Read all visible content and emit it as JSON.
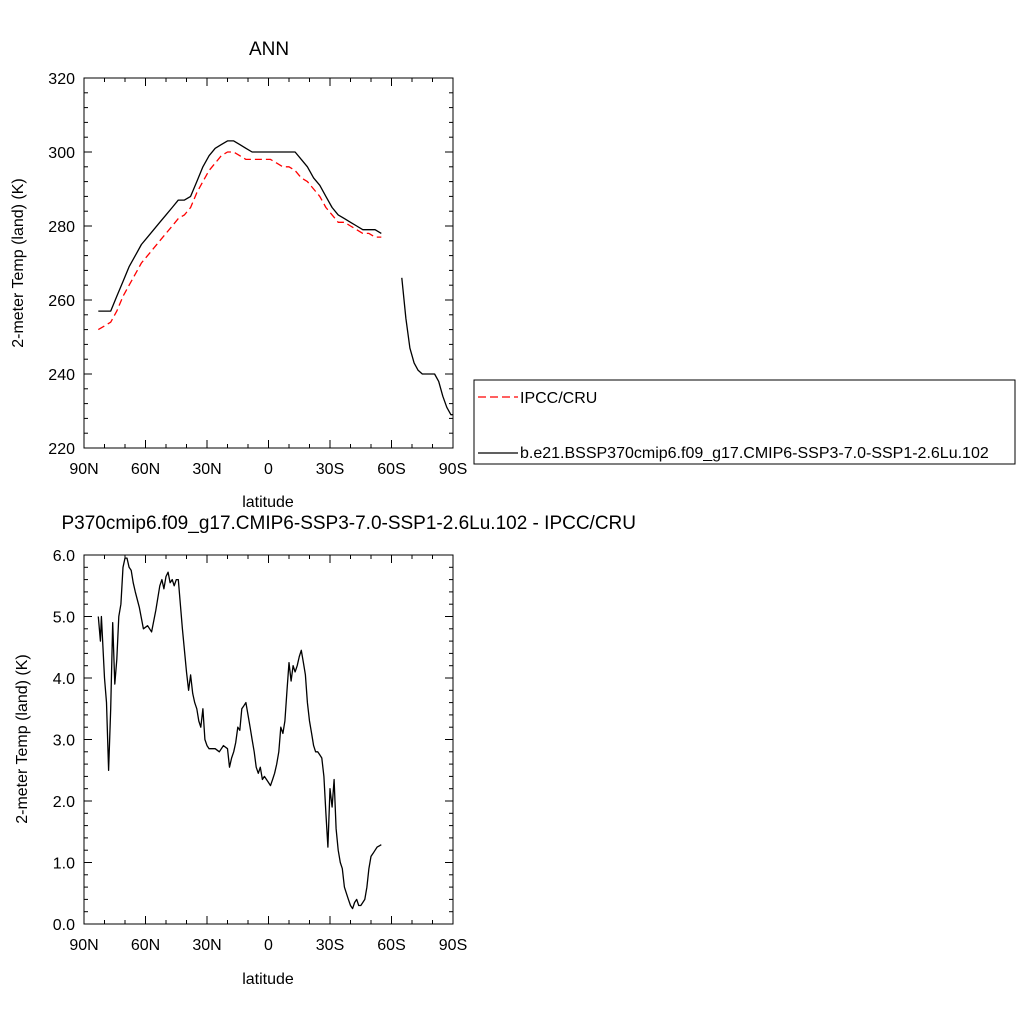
{
  "chart_data": [
    {
      "type": "line",
      "title": "ANN",
      "xlabel": "latitude",
      "ylabel": "2-meter Temp (land) (K)",
      "xlim": [
        90,
        -90
      ],
      "ylim": [
        220,
        320
      ],
      "xticks": [
        90,
        60,
        30,
        0,
        -30,
        -60,
        -90
      ],
      "xtick_labels": [
        "90N",
        "60N",
        "30N",
        "0",
        "30S",
        "60S",
        "90S"
      ],
      "yticks": [
        220,
        240,
        260,
        280,
        300,
        320
      ],
      "ytick_labels": [
        "220",
        "240",
        "260",
        "280",
        "300",
        "320"
      ],
      "legend_position": "right",
      "series": [
        {
          "name": "IPCC/CRU",
          "color": "#ff0000",
          "dash": "dashed",
          "x": [
            83,
            80,
            77,
            74,
            71,
            68,
            65,
            62,
            59,
            56,
            53,
            50,
            47,
            44,
            41,
            38,
            35,
            32,
            29,
            26,
            23,
            20,
            17,
            14,
            11,
            8,
            5,
            2,
            -1,
            -4,
            -7,
            -10,
            -13,
            -16,
            -19,
            -22,
            -25,
            -28,
            -31,
            -34,
            -37,
            -40,
            -43,
            -46,
            -49,
            -52,
            -55
          ],
          "y": [
            252,
            253,
            254,
            257,
            261,
            264,
            267,
            270,
            272,
            274,
            276,
            278,
            280,
            282,
            283,
            285,
            289,
            292,
            295,
            297,
            299,
            300,
            300,
            299,
            298,
            298,
            298,
            298,
            298,
            297,
            296,
            296,
            295,
            293,
            292,
            290,
            288,
            285,
            283,
            281,
            281,
            280,
            279,
            278,
            278,
            277,
            277
          ]
        },
        {
          "name": "b.e21.BSSP370cmip6.f09_g17.CMIP6-SSP3-7.0-SSP1-2.6Lu.102",
          "color": "#000000",
          "dash": "solid",
          "x": [
            83,
            80,
            77,
            74,
            71,
            68,
            65,
            62,
            59,
            56,
            53,
            50,
            47,
            44,
            41,
            38,
            35,
            32,
            29,
            26,
            23,
            20,
            17,
            14,
            11,
            8,
            5,
            2,
            -1,
            -4,
            -7,
            -10,
            -13,
            -16,
            -19,
            -22,
            -25,
            -28,
            -31,
            -34,
            -37,
            -40,
            -43,
            -46,
            -49,
            -52,
            -55,
            null,
            -65,
            -67,
            -69,
            -71,
            -73,
            -75,
            -77,
            -79,
            -81,
            -83,
            -85,
            -87,
            -89,
            -90
          ],
          "y": [
            257,
            257,
            257,
            261,
            265,
            269,
            272,
            275,
            277,
            279,
            281,
            283,
            285,
            287,
            287,
            288,
            292,
            296,
            299,
            301,
            302,
            303,
            303,
            302,
            301,
            300,
            300,
            300,
            300,
            300,
            300,
            300,
            300,
            298,
            296,
            293,
            291,
            288,
            285,
            283,
            282,
            281,
            280,
            279,
            279,
            279,
            278,
            null,
            266,
            255,
            247,
            243,
            241,
            240,
            240,
            240,
            240,
            238,
            234,
            231,
            229,
            229
          ]
        }
      ]
    },
    {
      "type": "line",
      "title": "P370cmip6.f09_g17.CMIP6-SSP3-7.0-SSP1-2.6Lu.102 - IPCC/CRU",
      "xlabel": "latitude",
      "ylabel": "2-meter Temp (land) (K)",
      "xlim": [
        90,
        -90
      ],
      "ylim": [
        0,
        6
      ],
      "xticks": [
        90,
        60,
        30,
        0,
        -30,
        -60,
        -90
      ],
      "xtick_labels": [
        "90N",
        "60N",
        "30N",
        "0",
        "30S",
        "60S",
        "90S"
      ],
      "yticks": [
        0,
        1,
        2,
        3,
        4,
        5,
        6
      ],
      "ytick_labels": [
        "0.0",
        "1.0",
        "2.0",
        "3.0",
        "4.0",
        "5.0",
        "6.0"
      ],
      "series": [
        {
          "color": "#000000",
          "dash": "solid",
          "x": [
            83,
            82,
            81.5,
            80,
            79,
            78,
            77,
            76,
            75,
            74,
            73,
            72,
            71,
            70,
            69,
            68,
            67,
            66,
            65,
            63,
            61,
            59,
            58,
            57,
            55,
            53,
            52,
            51,
            50,
            49,
            48,
            47,
            46,
            45,
            44,
            42,
            40,
            39,
            38,
            37,
            36,
            35,
            34,
            33,
            32,
            31,
            30,
            29,
            28,
            26,
            24,
            22,
            20,
            19,
            18,
            17,
            16,
            15,
            14,
            13,
            12,
            11,
            10,
            9,
            8,
            7,
            6,
            5,
            4,
            3,
            2,
            1,
            0,
            -1,
            -2,
            -3,
            -4,
            -5,
            -6,
            -7,
            -8,
            -9,
            -10,
            -11,
            -12,
            -13,
            -14,
            -15,
            -16,
            -17,
            -18,
            -19,
            -20,
            -21,
            -22,
            -23,
            -24,
            -25,
            -26,
            -27,
            -28,
            -29,
            -30,
            -31,
            -32,
            -33,
            -34,
            -35,
            -36,
            -37,
            -38,
            -39,
            -40,
            -41,
            -42,
            -43,
            -44,
            -45,
            -46,
            -47,
            -48,
            -49,
            -50,
            -51,
            -52,
            -53,
            -54,
            -55
          ],
          "y": [
            5.0,
            4.6,
            5.0,
            4.0,
            3.6,
            2.5,
            3.5,
            4.9,
            3.9,
            4.3,
            5.0,
            5.2,
            5.8,
            5.95,
            5.95,
            5.8,
            5.75,
            5.55,
            5.4,
            5.15,
            4.8,
            4.85,
            4.8,
            4.75,
            5.1,
            5.5,
            5.6,
            5.45,
            5.65,
            5.72,
            5.55,
            5.6,
            5.5,
            5.6,
            5.6,
            4.8,
            4.1,
            3.8,
            4.05,
            3.75,
            3.6,
            3.5,
            3.3,
            3.2,
            3.5,
            3.0,
            2.9,
            2.85,
            2.85,
            2.85,
            2.8,
            2.9,
            2.85,
            2.55,
            2.7,
            2.8,
            2.95,
            3.2,
            3.15,
            3.5,
            3.55,
            3.6,
            3.4,
            3.2,
            3.0,
            2.8,
            2.55,
            2.45,
            2.55,
            2.35,
            2.4,
            2.35,
            2.3,
            2.25,
            2.35,
            2.45,
            2.6,
            2.8,
            3.2,
            3.1,
            3.3,
            3.8,
            4.25,
            3.95,
            4.2,
            4.1,
            4.2,
            4.35,
            4.45,
            4.25,
            4.05,
            3.6,
            3.3,
            3.1,
            2.9,
            2.8,
            2.8,
            2.75,
            2.7,
            2.4,
            1.8,
            1.25,
            2.2,
            1.9,
            2.35,
            1.55,
            1.2,
            1.0,
            0.9,
            0.6,
            0.5,
            0.4,
            0.3,
            0.25,
            0.35,
            0.4,
            0.3,
            0.3,
            0.35,
            0.4,
            0.6,
            0.9,
            1.1,
            1.15,
            1.2,
            1.25,
            1.27,
            1.29
          ]
        }
      ]
    }
  ]
}
